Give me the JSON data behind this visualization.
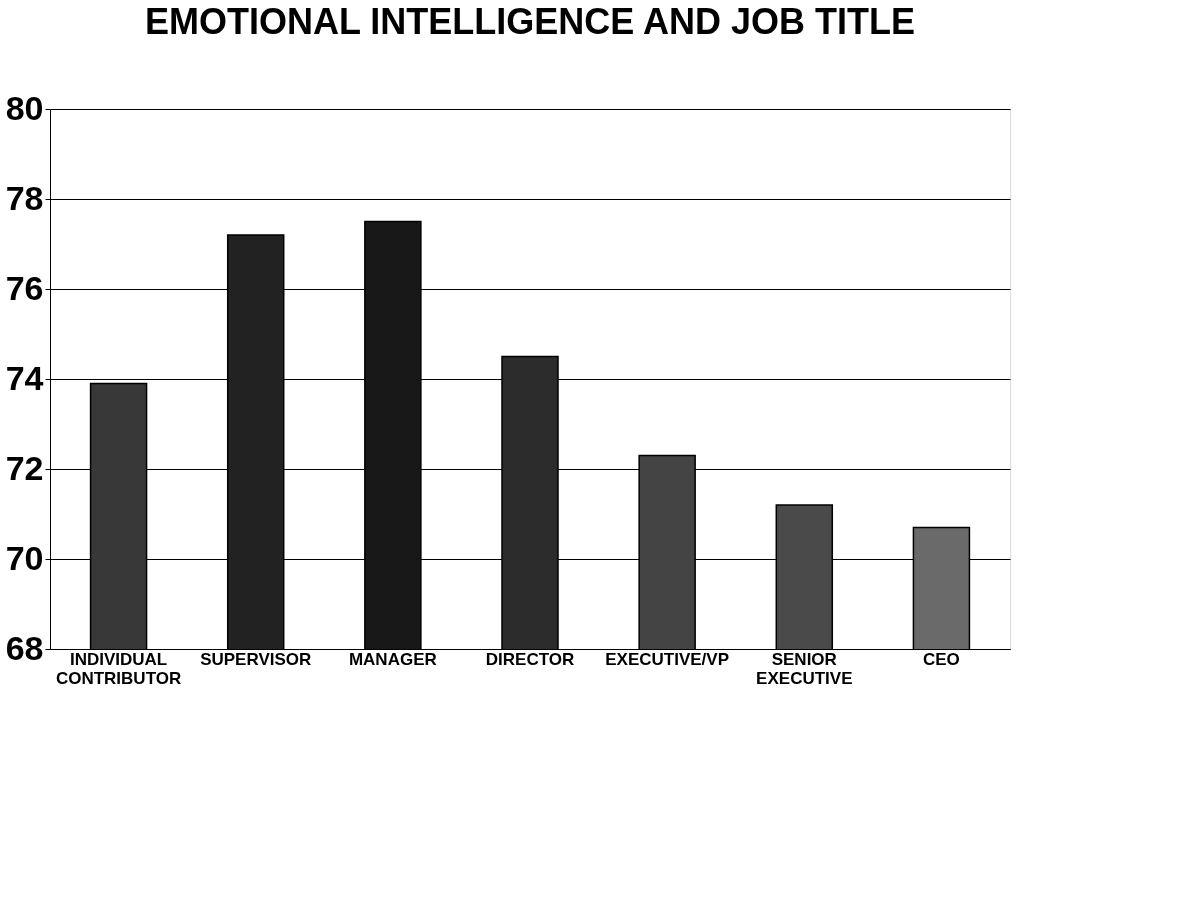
{
  "chart_data": {
    "type": "bar",
    "title": "EMOTIONAL INTELLIGENCE AND JOB TITLE",
    "categories": [
      "INDIVIDUAL CONTRIBUTOR",
      "SUPERVISOR",
      "MANAGER",
      "DIRECTOR",
      "EXECUTIVE/VP",
      "SENIOR EXECUTIVE",
      "CEO"
    ],
    "values": [
      73.9,
      77.2,
      77.5,
      74.5,
      72.3,
      71.2,
      70.7
    ],
    "colors": [
      "#383838",
      "#222222",
      "#181818",
      "#2c2c2c",
      "#444444",
      "#4a4a4a",
      "#6a6a6a"
    ],
    "ylim": [
      68,
      80
    ],
    "yticks": [
      68,
      70,
      72,
      74,
      76,
      78,
      80
    ],
    "grid": "y"
  }
}
